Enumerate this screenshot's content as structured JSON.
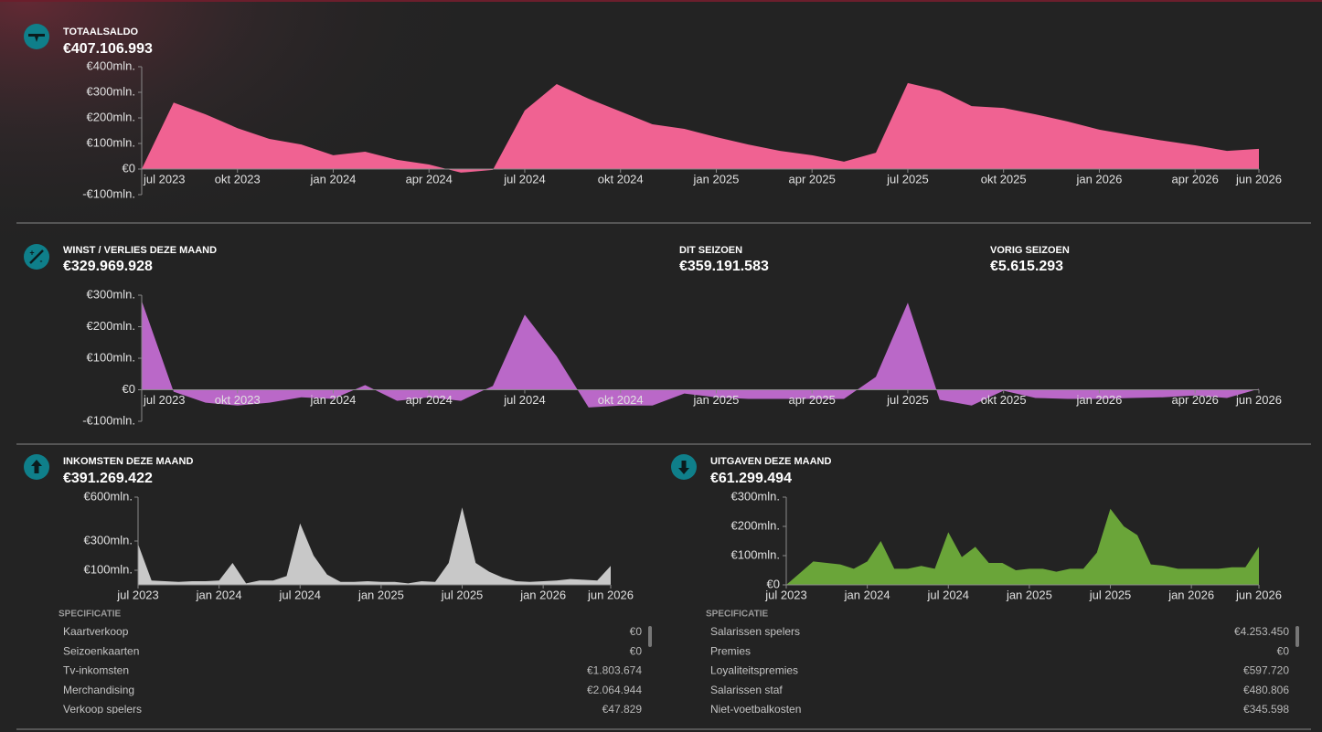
{
  "balance": {
    "title": "TOTAALSALDO",
    "amount": "€407.106.993",
    "chart": {
      "type": "area",
      "color": "#f06292",
      "categories": [
        "jul 2023",
        null,
        null,
        "okt 2023",
        null,
        null,
        "jan 2024",
        null,
        null,
        "apr 2024",
        null,
        null,
        "jul 2024",
        null,
        null,
        "okt 2024",
        null,
        null,
        "jan 2025",
        null,
        null,
        "apr 2025",
        null,
        null,
        "jul 2025",
        null,
        null,
        "okt 2025",
        null,
        null,
        "jan 2026",
        null,
        null,
        "apr 2026",
        null,
        "jun 2026"
      ],
      "values": [
        0,
        260,
        214,
        160,
        118,
        96,
        54,
        68,
        36,
        18,
        -14,
        -3,
        229,
        332,
        275,
        225,
        175,
        157,
        125,
        96,
        71,
        54,
        29,
        64,
        336,
        307,
        246,
        239,
        214,
        186,
        154,
        132,
        111,
        93,
        71,
        79
      ],
      "ylim": [
        -100,
        400
      ],
      "yticks": [
        {
          "value": 400,
          "label": "€400mln."
        },
        {
          "value": 300,
          "label": "€300mln."
        },
        {
          "value": 200,
          "label": "€200mln."
        },
        {
          "value": 100,
          "label": "€100mln."
        },
        {
          "value": 0,
          "label": "€0"
        },
        {
          "value": -100,
          "label": "-€100mln."
        }
      ]
    }
  },
  "profit": {
    "title": "WINST / VERLIES DEZE MAAND",
    "amount": "€329.969.928",
    "season": {
      "title": "DIT SEIZOEN",
      "amount": "€359.191.583"
    },
    "last_season": {
      "title": "VORIG SEIZOEN",
      "amount": "€5.615.293"
    },
    "chart": {
      "type": "area",
      "color": "#ba68c8",
      "categories": [
        "jul 2023",
        null,
        null,
        "okt 2023",
        null,
        null,
        "jan 2024",
        null,
        null,
        "apr 2024",
        null,
        null,
        "jul 2024",
        null,
        null,
        "okt 2024",
        null,
        null,
        "jan 2025",
        null,
        null,
        "apr 2025",
        null,
        null,
        "jul 2025",
        null,
        null,
        "okt 2025",
        null,
        null,
        "jan 2026",
        null,
        null,
        "apr 2026",
        null,
        "jun 2026"
      ],
      "values": [
        282,
        -6,
        -41,
        -50,
        -41,
        -24,
        -29,
        15,
        -35,
        -24,
        -35,
        12,
        238,
        106,
        -56,
        -50,
        -50,
        -12,
        -24,
        -29,
        -29,
        -29,
        -29,
        41,
        276,
        -32,
        -50,
        -3,
        -26,
        -29,
        -29,
        -26,
        -24,
        -18,
        -26,
        3
      ],
      "ylim": [
        -100,
        300
      ],
      "yticks": [
        {
          "value": 300,
          "label": "€300mln."
        },
        {
          "value": 200,
          "label": "€200mln."
        },
        {
          "value": 100,
          "label": "€100mln."
        },
        {
          "value": 0,
          "label": "€0"
        },
        {
          "value": -100,
          "label": "-€100mln."
        }
      ]
    }
  },
  "income": {
    "title": "INKOMSTEN DEZE MAAND",
    "amount": "€391.269.422",
    "chart": {
      "type": "area",
      "color": "#c8c8c8",
      "categories": [
        "jul 2023",
        null,
        null,
        null,
        null,
        null,
        "jan 2024",
        null,
        null,
        null,
        null,
        null,
        "jul 2024",
        null,
        null,
        null,
        null,
        null,
        "jan 2025",
        null,
        null,
        null,
        null,
        null,
        "jul 2025",
        null,
        null,
        null,
        null,
        null,
        "jan 2026",
        null,
        null,
        null,
        null,
        "jun 2026"
      ],
      "values": [
        280,
        30,
        25,
        20,
        25,
        25,
        30,
        150,
        10,
        30,
        30,
        60,
        420,
        200,
        70,
        20,
        20,
        25,
        20,
        20,
        10,
        25,
        20,
        150,
        530,
        150,
        90,
        50,
        25,
        20,
        25,
        30,
        40,
        35,
        30,
        130
      ],
      "ylim": [
        0,
        600
      ],
      "yticks": [
        {
          "value": 600,
          "label": "€600mln."
        },
        {
          "value": 300,
          "label": "€300mln."
        },
        {
          "value": 100,
          "label": "€100mln."
        }
      ]
    },
    "spec": {
      "title": "SPECIFICATIE",
      "rows": [
        [
          "Kaartverkoop",
          "€0"
        ],
        [
          "Seizoenkaarten",
          "€0"
        ],
        [
          "Tv-inkomsten",
          "€1.803.674"
        ],
        [
          "Merchandising",
          "€2.064.944"
        ],
        [
          "Verkoop spelers",
          "€47.829"
        ]
      ]
    }
  },
  "expenses": {
    "title": "UITGAVEN DEZE MAAND",
    "amount": "€61.299.494",
    "chart": {
      "type": "area",
      "color": "#6aa539",
      "categories": [
        "jul 2023",
        null,
        null,
        null,
        null,
        null,
        "jan 2024",
        null,
        null,
        null,
        null,
        null,
        "jul 2024",
        null,
        null,
        null,
        null,
        null,
        "jan 2025",
        null,
        null,
        null,
        null,
        null,
        "jul 2025",
        null,
        null,
        null,
        null,
        null,
        "jan 2026",
        null,
        null,
        null,
        null,
        "jun 2026"
      ],
      "values": [
        0,
        40,
        80,
        75,
        70,
        55,
        80,
        150,
        55,
        55,
        65,
        55,
        180,
        95,
        130,
        75,
        75,
        50,
        55,
        55,
        45,
        55,
        55,
        110,
        260,
        200,
        170,
        70,
        65,
        55,
        55,
        55,
        55,
        60,
        60,
        130
      ],
      "ylim": [
        0,
        300
      ],
      "yticks": [
        {
          "value": 300,
          "label": "€300mln."
        },
        {
          "value": 200,
          "label": "€200mln."
        },
        {
          "value": 100,
          "label": "€100mln."
        },
        {
          "value": 0,
          "label": "€0"
        }
      ]
    },
    "spec": {
      "title": "SPECIFICATIE",
      "rows": [
        [
          "Salarissen spelers",
          "€4.253.450"
        ],
        [
          "Premies",
          "€0"
        ],
        [
          "Loyaliteitspremies",
          "€597.720"
        ],
        [
          "Salarissen staf",
          "€480.806"
        ],
        [
          "Niet-voetbalkosten",
          "€345.598"
        ]
      ]
    }
  }
}
